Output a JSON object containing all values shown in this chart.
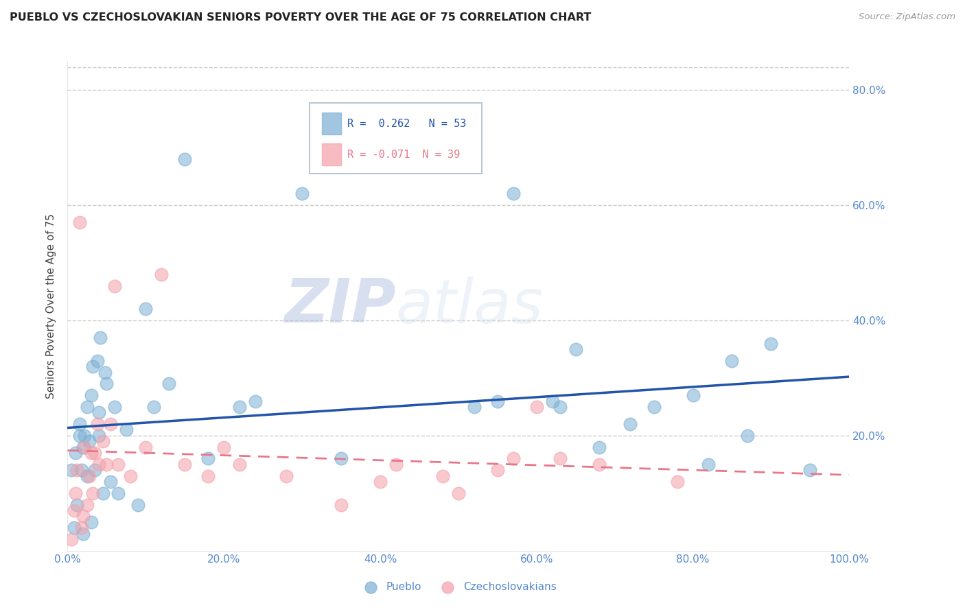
{
  "title": "PUEBLO VS CZECHOSLOVAKIAN SENIORS POVERTY OVER THE AGE OF 75 CORRELATION CHART",
  "source": "Source: ZipAtlas.com",
  "ylabel": "Seniors Poverty Over the Age of 75",
  "xlim": [
    0,
    1.0
  ],
  "ylim": [
    0,
    0.85
  ],
  "xticks": [
    0.0,
    0.2,
    0.4,
    0.6,
    0.8,
    1.0
  ],
  "xtick_labels": [
    "0.0%",
    "20.0%",
    "40.0%",
    "60.0%",
    "80.0%",
    "100.0%"
  ],
  "ytick_labels_right": [
    "20.0%",
    "40.0%",
    "60.0%",
    "80.0%"
  ],
  "ytick_vals": [
    0.2,
    0.4,
    0.6,
    0.8
  ],
  "pueblo_color": "#7BAFD4",
  "czech_color": "#F4A0A8",
  "pueblo_line_color": "#2255AA",
  "czech_line_color": "#E8778A",
  "pueblo_R": 0.262,
  "pueblo_N": 53,
  "czech_R": -0.071,
  "czech_N": 39,
  "pueblo_x": [
    0.005,
    0.008,
    0.01,
    0.012,
    0.015,
    0.015,
    0.018,
    0.02,
    0.02,
    0.022,
    0.025,
    0.025,
    0.028,
    0.03,
    0.03,
    0.032,
    0.035,
    0.038,
    0.04,
    0.04,
    0.042,
    0.045,
    0.048,
    0.05,
    0.055,
    0.06,
    0.065,
    0.075,
    0.09,
    0.1,
    0.11,
    0.13,
    0.15,
    0.18,
    0.22,
    0.24,
    0.3,
    0.35,
    0.52,
    0.55,
    0.57,
    0.62,
    0.63,
    0.65,
    0.68,
    0.72,
    0.75,
    0.8,
    0.82,
    0.85,
    0.87,
    0.9,
    0.95
  ],
  "pueblo_y": [
    0.14,
    0.04,
    0.17,
    0.08,
    0.2,
    0.22,
    0.14,
    0.18,
    0.03,
    0.2,
    0.13,
    0.25,
    0.19,
    0.05,
    0.27,
    0.32,
    0.14,
    0.33,
    0.24,
    0.2,
    0.37,
    0.1,
    0.31,
    0.29,
    0.12,
    0.25,
    0.1,
    0.21,
    0.08,
    0.42,
    0.25,
    0.29,
    0.68,
    0.16,
    0.25,
    0.26,
    0.62,
    0.16,
    0.25,
    0.26,
    0.62,
    0.26,
    0.25,
    0.35,
    0.18,
    0.22,
    0.25,
    0.27,
    0.15,
    0.33,
    0.2,
    0.36,
    0.14
  ],
  "czech_x": [
    0.005,
    0.008,
    0.01,
    0.012,
    0.015,
    0.018,
    0.02,
    0.022,
    0.025,
    0.028,
    0.03,
    0.032,
    0.035,
    0.038,
    0.04,
    0.045,
    0.05,
    0.055,
    0.06,
    0.065,
    0.08,
    0.1,
    0.12,
    0.15,
    0.18,
    0.2,
    0.22,
    0.28,
    0.35,
    0.4,
    0.42,
    0.48,
    0.5,
    0.55,
    0.57,
    0.6,
    0.63,
    0.68,
    0.78
  ],
  "czech_y": [
    0.02,
    0.07,
    0.1,
    0.14,
    0.57,
    0.04,
    0.06,
    0.18,
    0.08,
    0.13,
    0.17,
    0.1,
    0.17,
    0.22,
    0.15,
    0.19,
    0.15,
    0.22,
    0.46,
    0.15,
    0.13,
    0.18,
    0.48,
    0.15,
    0.13,
    0.18,
    0.15,
    0.13,
    0.08,
    0.12,
    0.15,
    0.13,
    0.1,
    0.14,
    0.16,
    0.25,
    0.16,
    0.15,
    0.12
  ],
  "watermark_zip": "ZIP",
  "watermark_atlas": "atlas",
  "bg_color": "#FFFFFF",
  "grid_color": "#CCCCCC",
  "tick_color": "#5588CC",
  "label_color": "#444444"
}
